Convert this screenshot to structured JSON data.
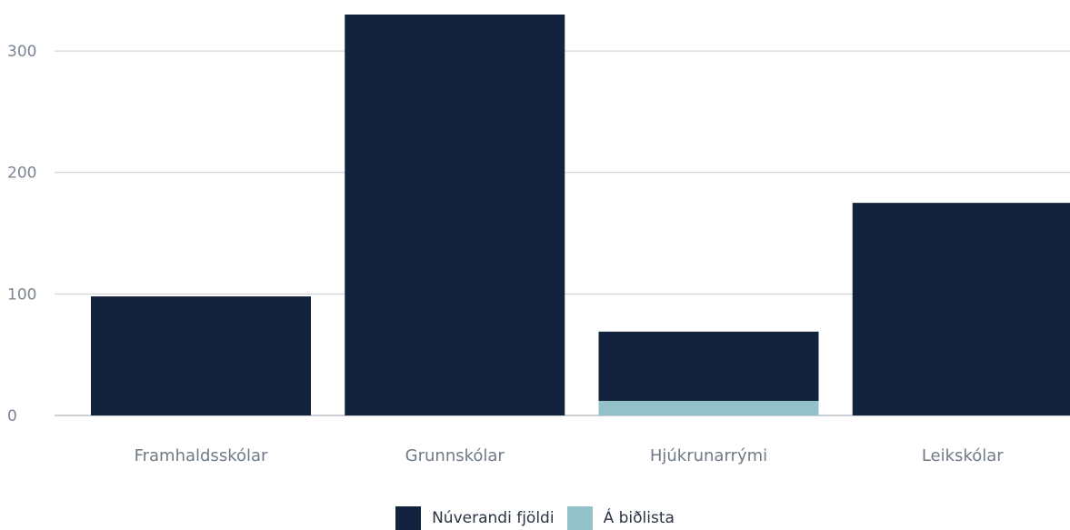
{
  "chart_data": {
    "type": "bar",
    "stacked": true,
    "categories": [
      "Framhaldsskólar",
      "Grunnskólar",
      "Hjúkrunarrými",
      "Leikskólar"
    ],
    "series": [
      {
        "name": "Á biðlista",
        "color": "#93c1c8",
        "values": [
          0,
          0,
          12,
          0
        ]
      },
      {
        "name": "Núverandi fjöldi",
        "color": "#14233d",
        "values": [
          98,
          330,
          57,
          175
        ]
      }
    ],
    "yticks": [
      0,
      100,
      200,
      300
    ],
    "ylim": [
      0,
      330
    ],
    "grid": true,
    "legend_position": "bottom-center",
    "legend_order": [
      "Núverandi fjöldi",
      "Á biðlista"
    ]
  }
}
